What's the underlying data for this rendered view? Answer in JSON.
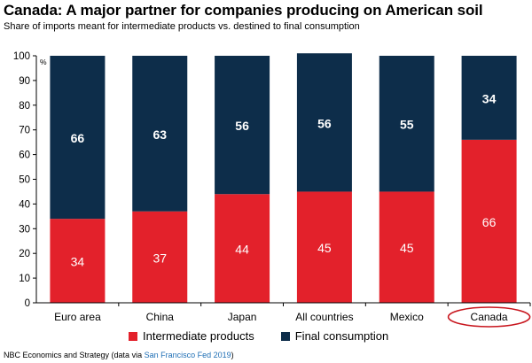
{
  "title": "Canada: A major partner for companies producing on American soil",
  "subtitle": "Share of imports meant for intermediate products vs. destined to final consumption",
  "footer": {
    "text": "NBC Economics and Strategy (data via ",
    "link": "San Francisco Fed 2019",
    "close": ")"
  },
  "chart_data": {
    "type": "bar",
    "stacked": true,
    "categories": [
      "Euro area",
      "China",
      "Japan",
      "All countries",
      "Mexico",
      "Canada"
    ],
    "series": [
      {
        "name": "Intermediate products",
        "values": [
          34,
          37,
          44,
          45,
          45,
          66
        ],
        "color": "#e3212b"
      },
      {
        "name": "Final consumption",
        "values": [
          66,
          63,
          56,
          56,
          55,
          34
        ],
        "color": "#0d2d4a"
      }
    ],
    "ylim": [
      0,
      100
    ],
    "yticks": [
      0,
      10,
      20,
      30,
      40,
      50,
      60,
      70,
      80,
      90,
      100
    ],
    "ylabel": "%",
    "highlight": "Canada",
    "highlight_color": "#c8161e",
    "grid": false,
    "legend_position": "bottom"
  }
}
